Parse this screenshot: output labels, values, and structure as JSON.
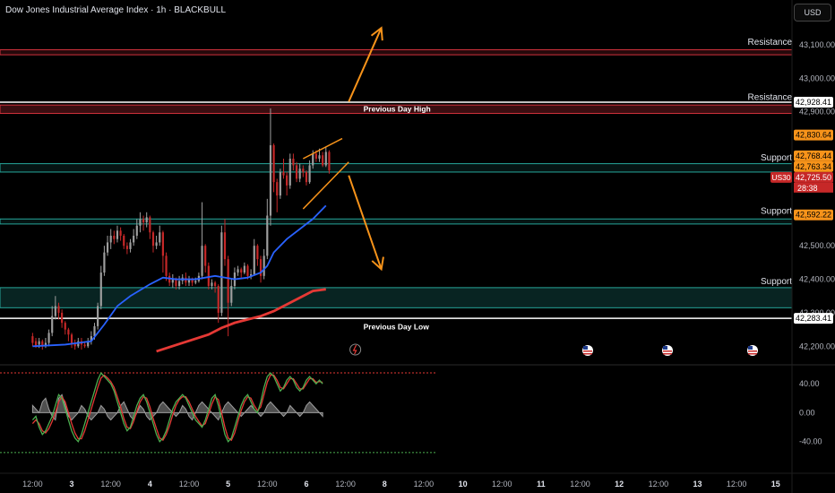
{
  "header": {
    "title": "Dow Jones Industrial Average Index · 1h · BLACKBULL",
    "currency_button": "USD"
  },
  "colors": {
    "background": "#000000",
    "resistance": "#d0323c",
    "support": "#26a69a",
    "white_line": "#ffffff",
    "candle_up": "#9e9e9e",
    "candle_down": "#c62828",
    "ma_blue": "#2962ff",
    "ma_red": "#e53935",
    "pattern": "#f7931a",
    "osc_green": "#4caf50",
    "osc_red": "#e53935",
    "osc_hist": "#9e9e9e"
  },
  "chart_data": {
    "type": "candlestick",
    "symbol": "US30",
    "timeframe": "1h",
    "ylim": [
      42150,
      43180
    ],
    "y_ticks": [
      "43,100.00",
      "43,000.00",
      "42,900.00",
      "42,500.00",
      "42,400.00",
      "42,300.00",
      "42,200.00"
    ],
    "x_ticks": [
      {
        "t": 0,
        "label": "12:00"
      },
      {
        "t": 12,
        "label": "3"
      },
      {
        "t": 24,
        "label": "12:00"
      },
      {
        "t": 36,
        "label": "4"
      },
      {
        "t": 48,
        "label": "12:00"
      },
      {
        "t": 60,
        "label": "5"
      },
      {
        "t": 72,
        "label": "12:00"
      },
      {
        "t": 84,
        "label": "6"
      },
      {
        "t": 96,
        "label": "12:00"
      },
      {
        "t": 108,
        "label": "8"
      },
      {
        "t": 120,
        "label": "12:00"
      },
      {
        "t": 132,
        "label": "10"
      },
      {
        "t": 144,
        "label": "12:00"
      },
      {
        "t": 156,
        "label": "11"
      },
      {
        "t": 168,
        "label": "12:00"
      },
      {
        "t": 180,
        "label": "12"
      },
      {
        "t": 192,
        "label": "12:00"
      },
      {
        "t": 204,
        "label": "13"
      },
      {
        "t": 216,
        "label": "12:00"
      },
      {
        "t": 228,
        "label": "15"
      }
    ],
    "x_range": [
      -10,
      233
    ],
    "candles": [
      [
        42230,
        42210,
        42240,
        42200
      ],
      [
        42215,
        42200,
        42225,
        42195
      ],
      [
        42205,
        42215,
        42225,
        42195
      ],
      [
        42215,
        42200,
        42220,
        42190
      ],
      [
        42200,
        42210,
        42225,
        42195
      ],
      [
        42210,
        42240,
        42250,
        42200
      ],
      [
        42240,
        42290,
        42320,
        42230
      ],
      [
        42290,
        42320,
        42350,
        42280
      ],
      [
        42320,
        42300,
        42330,
        42280
      ],
      [
        42300,
        42270,
        42310,
        42255
      ],
      [
        42270,
        42250,
        42275,
        42235
      ],
      [
        42250,
        42235,
        42255,
        42215
      ],
      [
        42235,
        42210,
        42240,
        42195
      ],
      [
        42210,
        42200,
        42220,
        42190
      ],
      [
        42200,
        42215,
        42225,
        42195
      ],
      [
        42215,
        42205,
        42225,
        42190
      ],
      [
        42205,
        42200,
        42215,
        42195
      ],
      [
        42200,
        42215,
        42225,
        42195
      ],
      [
        42215,
        42230,
        42245,
        42205
      ],
      [
        42230,
        42260,
        42270,
        42220
      ],
      [
        42260,
        42320,
        42330,
        42250
      ],
      [
        42320,
        42420,
        42440,
        42310
      ],
      [
        42420,
        42480,
        42500,
        42410
      ],
      [
        42480,
        42510,
        42530,
        42470
      ],
      [
        42510,
        42530,
        42550,
        42490
      ],
      [
        42530,
        42520,
        42545,
        42505
      ],
      [
        42520,
        42545,
        42560,
        42510
      ],
      [
        42545,
        42530,
        42555,
        42515
      ],
      [
        42530,
        42500,
        42535,
        42490
      ],
      [
        42500,
        42490,
        42510,
        42475
      ],
      [
        42490,
        42510,
        42520,
        42480
      ],
      [
        42510,
        42530,
        42550,
        42500
      ],
      [
        42530,
        42560,
        42580,
        42520
      ],
      [
        42560,
        42580,
        42600,
        42540
      ],
      [
        42580,
        42570,
        42590,
        42545
      ],
      [
        42570,
        42585,
        42600,
        42555
      ],
      [
        42585,
        42540,
        42590,
        42520
      ],
      [
        42540,
        42500,
        42545,
        42480
      ],
      [
        42500,
        42510,
        42530,
        42490
      ],
      [
        42510,
        42540,
        42560,
        42500
      ],
      [
        42540,
        42470,
        42545,
        42420
      ],
      [
        42470,
        42410,
        42480,
        42395
      ],
      [
        42410,
        42390,
        42420,
        42380
      ],
      [
        42390,
        42400,
        42415,
        42375
      ],
      [
        42400,
        42380,
        42405,
        42370
      ],
      [
        42380,
        42395,
        42410,
        42370
      ],
      [
        42395,
        42405,
        42415,
        42385
      ],
      [
        42405,
        42390,
        42420,
        42380
      ],
      [
        42390,
        42400,
        42410,
        42380
      ],
      [
        42400,
        42390,
        42405,
        42380
      ],
      [
        42390,
        42395,
        42405,
        42385
      ],
      [
        42395,
        42410,
        42420,
        42390
      ],
      [
        42410,
        42500,
        42630,
        42400
      ],
      [
        42500,
        42440,
        42505,
        42420
      ],
      [
        42440,
        42380,
        42450,
        42370
      ],
      [
        42380,
        42390,
        42400,
        42370
      ],
      [
        42390,
        42380,
        42395,
        42360
      ],
      [
        42380,
        42300,
        42385,
        42270
      ],
      [
        42300,
        42540,
        42560,
        42290
      ],
      [
        42540,
        42460,
        42580,
        42440
      ],
      [
        42460,
        42330,
        42470,
        42230
      ],
      [
        42330,
        42380,
        42400,
        42320
      ],
      [
        42380,
        42420,
        42435,
        42370
      ],
      [
        42420,
        42430,
        42440,
        42410
      ],
      [
        42430,
        42420,
        42435,
        42405
      ],
      [
        42420,
        42440,
        42450,
        42415
      ],
      [
        42440,
        42410,
        42445,
        42400
      ],
      [
        42410,
        42415,
        42430,
        42400
      ],
      [
        42415,
        42500,
        42520,
        42410
      ],
      [
        42500,
        42460,
        42505,
        42440
      ],
      [
        42460,
        42410,
        42470,
        42390
      ],
      [
        42410,
        42470,
        42490,
        42400
      ],
      [
        42470,
        42590,
        42640,
        42460
      ],
      [
        42590,
        42800,
        42910,
        42560
      ],
      [
        42800,
        42690,
        42805,
        42660
      ],
      [
        42690,
        42650,
        42700,
        42600
      ],
      [
        42650,
        42720,
        42730,
        42640
      ],
      [
        42720,
        42710,
        42760,
        42700
      ],
      [
        42710,
        42680,
        42720,
        42650
      ],
      [
        42680,
        42760,
        42775,
        42670
      ],
      [
        42760,
        42740,
        42775,
        42725
      ],
      [
        42740,
        42700,
        42750,
        42690
      ],
      [
        42700,
        42730,
        42745,
        42690
      ],
      [
        42730,
        42720,
        42740,
        42705
      ],
      [
        42720,
        42690,
        42725,
        42680
      ],
      [
        42690,
        42740,
        42755,
        42685
      ],
      [
        42740,
        42775,
        42785,
        42730
      ],
      [
        42775,
        42760,
        42785,
        42750
      ],
      [
        42760,
        42770,
        42790,
        42750
      ],
      [
        42770,
        42740,
        42780,
        42735
      ],
      [
        42740,
        42780,
        42795,
        42735
      ],
      [
        42780,
        42725,
        42785,
        42715
      ]
    ],
    "ma_blue": [
      [
        0,
        42200
      ],
      [
        10,
        42205
      ],
      [
        18,
        42215
      ],
      [
        22,
        42265
      ],
      [
        26,
        42320
      ],
      [
        30,
        42350
      ],
      [
        36,
        42385
      ],
      [
        40,
        42405
      ],
      [
        44,
        42400
      ],
      [
        50,
        42400
      ],
      [
        56,
        42410
      ],
      [
        62,
        42400
      ],
      [
        66,
        42405
      ],
      [
        70,
        42420
      ],
      [
        72,
        42440
      ],
      [
        74,
        42480
      ],
      [
        78,
        42520
      ],
      [
        82,
        42550
      ],
      [
        86,
        42580
      ],
      [
        90,
        42620
      ]
    ],
    "ma_red": [
      [
        38,
        42185
      ],
      [
        46,
        42210
      ],
      [
        54,
        42235
      ],
      [
        58,
        42255
      ],
      [
        62,
        42270
      ],
      [
        66,
        42280
      ],
      [
        70,
        42290
      ],
      [
        74,
        42305
      ],
      [
        78,
        42325
      ],
      [
        82,
        42345
      ],
      [
        86,
        42365
      ],
      [
        90,
        42370
      ]
    ],
    "levels": [
      {
        "name": "Resistance",
        "low": 43070,
        "high": 43085,
        "type": "resistance"
      },
      {
        "name": "Resistance",
        "low": 42895,
        "high": 42920,
        "type": "resistance-zone",
        "text": "Previous Day High"
      },
      {
        "name": "Support",
        "low": 42720,
        "high": 42745,
        "type": "support"
      },
      {
        "name": "Support",
        "low": 42565,
        "high": 42580,
        "type": "support"
      },
      {
        "name": "Support",
        "low": 42315,
        "high": 42375,
        "type": "support-zone"
      },
      {
        "name": "Previous Day Low",
        "value": 42290,
        "type": "white"
      }
    ],
    "previous_day_high_line": 42928.41,
    "previous_day_low_line": 42283.41,
    "labels_text": {
      "resistance": "Resistance",
      "support": "Support",
      "pdh": "Previous Day High",
      "pdl": "Previous Day Low"
    },
    "price_labels": [
      {
        "value": 42928.41,
        "text": "42,928.41",
        "style": "white"
      },
      {
        "value": 42830.64,
        "text": "42,830.64",
        "style": "orange"
      },
      {
        "value": 42768.44,
        "text": "42,768.44",
        "style": "orange"
      },
      {
        "value": 42763.34,
        "text": "42,763.34",
        "style": "orange"
      },
      {
        "value": 42725.5,
        "text": "42,725.50",
        "style": "red"
      },
      {
        "value": 42592.22,
        "text": "42,592.22",
        "style": "orange"
      },
      {
        "value": 42283.41,
        "text": "42,283.41",
        "style": "white"
      }
    ],
    "symbol_tag": "US30",
    "countdown": "28:38",
    "wedge_upper": [
      [
        83,
        42760
      ],
      [
        95,
        42820
      ]
    ],
    "wedge_lower": [
      [
        83,
        42610
      ],
      [
        97,
        42750
      ]
    ],
    "arrow_up": {
      "from": [
        97,
        42930
      ],
      "to": [
        107,
        43150
      ]
    },
    "arrow_down": {
      "from": [
        97,
        42710
      ],
      "to": [
        107,
        42430
      ]
    },
    "oscillator": {
      "y_ticks": [
        {
          "v": 40,
          "label": "40.00"
        },
        {
          "v": 0,
          "label": "0.00"
        },
        {
          "v": -40,
          "label": "-40.00"
        }
      ],
      "ylim": [
        -80,
        60
      ],
      "overbought": 55,
      "oversold": -55,
      "green": [
        -10,
        -5,
        -20,
        -30,
        -25,
        -15,
        -5,
        10,
        25,
        20,
        5,
        -10,
        -25,
        -35,
        -40,
        -30,
        -15,
        0,
        15,
        30,
        45,
        55,
        50,
        45,
        40,
        30,
        15,
        0,
        -15,
        -25,
        -20,
        -5,
        10,
        20,
        25,
        15,
        0,
        -15,
        -30,
        -40,
        -35,
        -25,
        -10,
        5,
        15,
        20,
        25,
        20,
        10,
        0,
        -10,
        -15,
        -20,
        -10,
        5,
        20,
        25,
        10,
        -10,
        -30,
        -40,
        -35,
        -20,
        -5,
        10,
        20,
        25,
        15,
        5,
        0,
        15,
        35,
        50,
        55,
        50,
        40,
        30,
        35,
        45,
        50,
        45,
        35,
        30,
        35,
        45,
        50,
        45,
        40,
        45,
        40
      ],
      "red": [
        -15,
        -10,
        -15,
        -25,
        -28,
        -22,
        -12,
        0,
        15,
        22,
        15,
        0,
        -15,
        -28,
        -36,
        -36,
        -25,
        -10,
        5,
        20,
        35,
        48,
        52,
        48,
        43,
        35,
        22,
        8,
        -8,
        -20,
        -22,
        -12,
        2,
        15,
        22,
        20,
        8,
        -8,
        -22,
        -35,
        -38,
        -30,
        -18,
        -3,
        10,
        18,
        22,
        22,
        15,
        5,
        -5,
        -12,
        -18,
        -15,
        -2,
        12,
        22,
        18,
        0,
        -20,
        -35,
        -38,
        -28,
        -12,
        3,
        15,
        22,
        20,
        10,
        3,
        8,
        25,
        42,
        52,
        52,
        45,
        35,
        33,
        40,
        47,
        47,
        40,
        33,
        33,
        40,
        47,
        47,
        42,
        43,
        42
      ],
      "hist": [
        10,
        5,
        0,
        15,
        20,
        5,
        -5,
        -10,
        20,
        25,
        10,
        -5,
        -10,
        -5,
        0,
        10,
        5,
        -5,
        -10,
        -5,
        0,
        10,
        5,
        -5,
        -10,
        -5,
        0,
        10,
        15,
        5,
        -5,
        -10,
        0,
        10,
        5,
        -5,
        -10,
        -5,
        0,
        10,
        15,
        10,
        5,
        0,
        -5,
        0,
        10,
        5,
        -5,
        -10,
        0,
        10,
        15,
        10,
        5,
        0,
        -5,
        -10,
        0,
        10,
        15,
        10,
        5,
        0,
        -5,
        0,
        5,
        10,
        5,
        0,
        -5,
        0,
        10,
        15,
        10,
        5,
        0,
        -5,
        0,
        10,
        5,
        0,
        -5,
        0,
        10,
        15,
        10,
        5,
        0,
        -5
      ]
    }
  }
}
